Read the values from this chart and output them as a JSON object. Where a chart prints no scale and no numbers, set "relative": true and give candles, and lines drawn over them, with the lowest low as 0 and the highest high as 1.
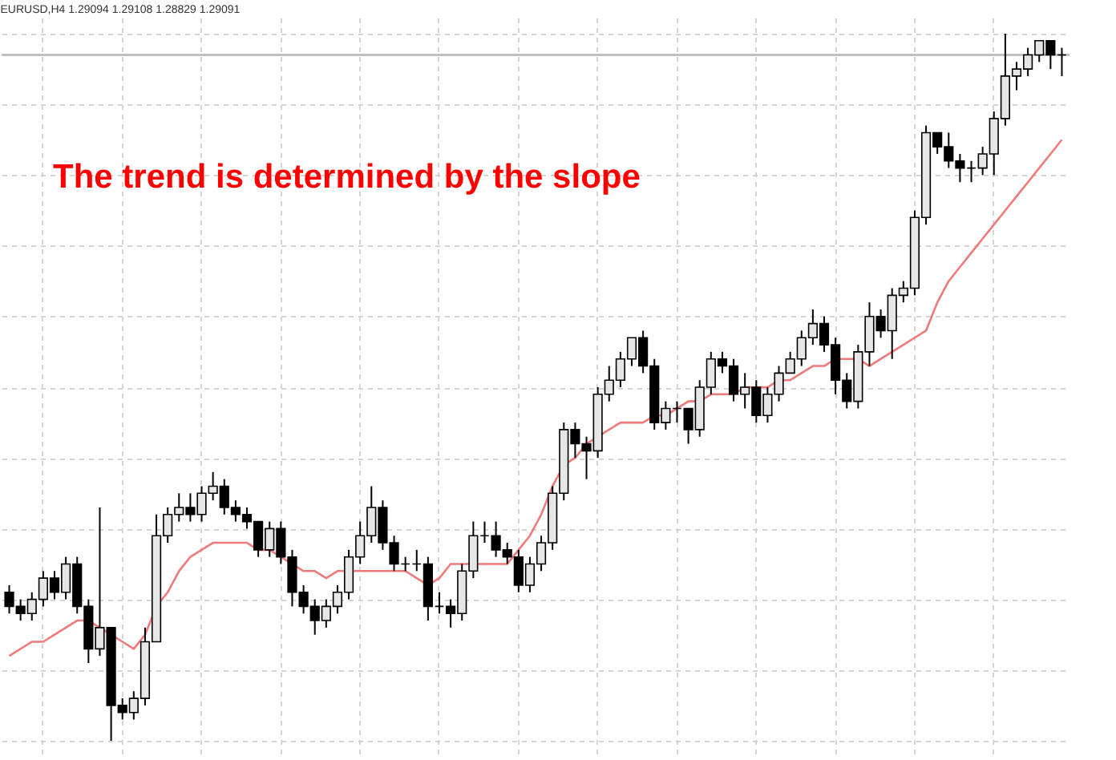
{
  "chart_data": {
    "type": "candlestick",
    "title": "EURUSD,H4 1.29094 1.29108 1.28829 1.29091",
    "relative": true,
    "grid": true,
    "tick_labels": false,
    "annotations": [
      "The trend is determined by the slope"
    ],
    "categories": [
      null,
      null,
      null,
      null,
      null,
      null,
      null,
      null,
      null,
      null,
      null,
      null,
      null,
      null,
      null,
      null,
      null,
      null,
      null,
      null,
      null,
      null,
      null,
      null,
      null,
      null,
      null,
      null,
      null,
      null,
      null,
      null,
      null,
      null,
      null,
      null,
      null,
      null,
      null,
      null,
      null,
      null,
      null,
      null,
      null,
      null,
      null,
      null,
      null,
      null,
      null,
      null,
      null,
      null,
      null,
      null,
      null,
      null,
      null,
      null,
      null,
      null,
      null,
      null,
      null,
      null,
      null,
      null,
      null,
      null,
      null,
      null,
      null,
      null,
      null,
      null,
      null,
      null,
      null,
      null,
      null,
      null,
      null,
      null,
      null,
      null,
      null,
      null,
      null,
      null,
      null,
      null,
      null,
      null
    ],
    "ohlc": [
      [
        0.21,
        0.22,
        0.18,
        0.19
      ],
      [
        0.19,
        0.2,
        0.17,
        0.18
      ],
      [
        0.18,
        0.21,
        0.17,
        0.2
      ],
      [
        0.2,
        0.24,
        0.19,
        0.23
      ],
      [
        0.23,
        0.24,
        0.2,
        0.21
      ],
      [
        0.21,
        0.26,
        0.2,
        0.25
      ],
      [
        0.25,
        0.26,
        0.18,
        0.19
      ],
      [
        0.19,
        0.2,
        0.11,
        0.13
      ],
      [
        0.13,
        0.33,
        0.12,
        0.16
      ],
      [
        0.16,
        0.16,
        0.0,
        0.05
      ],
      [
        0.05,
        0.06,
        0.03,
        0.04
      ],
      [
        0.04,
        0.07,
        0.03,
        0.06
      ],
      [
        0.06,
        0.16,
        0.05,
        0.14
      ],
      [
        0.14,
        0.32,
        0.14,
        0.29
      ],
      [
        0.29,
        0.33,
        0.28,
        0.32
      ],
      [
        0.32,
        0.35,
        0.31,
        0.33
      ],
      [
        0.33,
        0.35,
        0.31,
        0.32
      ],
      [
        0.32,
        0.36,
        0.31,
        0.35
      ],
      [
        0.35,
        0.38,
        0.34,
        0.36
      ],
      [
        0.36,
        0.37,
        0.32,
        0.33
      ],
      [
        0.33,
        0.34,
        0.31,
        0.32
      ],
      [
        0.32,
        0.33,
        0.3,
        0.31
      ],
      [
        0.31,
        0.31,
        0.26,
        0.27
      ],
      [
        0.27,
        0.31,
        0.26,
        0.3
      ],
      [
        0.3,
        0.31,
        0.25,
        0.26
      ],
      [
        0.26,
        0.27,
        0.19,
        0.21
      ],
      [
        0.21,
        0.22,
        0.18,
        0.19
      ],
      [
        0.19,
        0.2,
        0.15,
        0.17
      ],
      [
        0.17,
        0.2,
        0.16,
        0.19
      ],
      [
        0.19,
        0.22,
        0.18,
        0.21
      ],
      [
        0.21,
        0.27,
        0.2,
        0.26
      ],
      [
        0.26,
        0.31,
        0.25,
        0.29
      ],
      [
        0.29,
        0.36,
        0.28,
        0.33
      ],
      [
        0.33,
        0.34,
        0.27,
        0.28
      ],
      [
        0.28,
        0.29,
        0.24,
        0.25
      ],
      [
        0.25,
        0.26,
        0.24,
        0.25
      ],
      [
        0.25,
        0.27,
        0.24,
        0.25
      ],
      [
        0.25,
        0.26,
        0.17,
        0.19
      ],
      [
        0.19,
        0.21,
        0.18,
        0.19
      ],
      [
        0.19,
        0.2,
        0.16,
        0.18
      ],
      [
        0.18,
        0.25,
        0.17,
        0.24
      ],
      [
        0.24,
        0.31,
        0.23,
        0.29
      ],
      [
        0.29,
        0.31,
        0.28,
        0.29
      ],
      [
        0.29,
        0.31,
        0.26,
        0.27
      ],
      [
        0.27,
        0.28,
        0.25,
        0.26
      ],
      [
        0.26,
        0.27,
        0.21,
        0.22
      ],
      [
        0.22,
        0.26,
        0.21,
        0.25
      ],
      [
        0.25,
        0.29,
        0.24,
        0.28
      ],
      [
        0.28,
        0.36,
        0.27,
        0.35
      ],
      [
        0.35,
        0.45,
        0.34,
        0.44
      ],
      [
        0.44,
        0.45,
        0.4,
        0.42
      ],
      [
        0.42,
        0.43,
        0.37,
        0.41
      ],
      [
        0.41,
        0.5,
        0.4,
        0.49
      ],
      [
        0.49,
        0.53,
        0.48,
        0.51
      ],
      [
        0.51,
        0.55,
        0.5,
        0.54
      ],
      [
        0.54,
        0.57,
        0.53,
        0.57
      ],
      [
        0.57,
        0.58,
        0.52,
        0.53
      ],
      [
        0.53,
        0.54,
        0.44,
        0.45
      ],
      [
        0.45,
        0.48,
        0.44,
        0.47
      ],
      [
        0.47,
        0.48,
        0.45,
        0.47
      ],
      [
        0.47,
        0.47,
        0.42,
        0.44
      ],
      [
        0.44,
        0.51,
        0.43,
        0.5
      ],
      [
        0.5,
        0.55,
        0.49,
        0.54
      ],
      [
        0.54,
        0.55,
        0.52,
        0.53
      ],
      [
        0.53,
        0.54,
        0.48,
        0.49
      ],
      [
        0.49,
        0.52,
        0.47,
        0.5
      ],
      [
        0.5,
        0.51,
        0.45,
        0.46
      ],
      [
        0.46,
        0.5,
        0.45,
        0.49
      ],
      [
        0.49,
        0.53,
        0.48,
        0.52
      ],
      [
        0.52,
        0.55,
        0.52,
        0.54
      ],
      [
        0.54,
        0.58,
        0.53,
        0.57
      ],
      [
        0.57,
        0.61,
        0.56,
        0.59
      ],
      [
        0.59,
        0.6,
        0.55,
        0.56
      ],
      [
        0.56,
        0.57,
        0.49,
        0.51
      ],
      [
        0.51,
        0.52,
        0.47,
        0.48
      ],
      [
        0.48,
        0.56,
        0.47,
        0.55
      ],
      [
        0.55,
        0.62,
        0.53,
        0.6
      ],
      [
        0.6,
        0.61,
        0.57,
        0.58
      ],
      [
        0.58,
        0.64,
        0.54,
        0.63
      ],
      [
        0.63,
        0.65,
        0.62,
        0.64
      ],
      [
        0.64,
        0.75,
        0.63,
        0.74
      ],
      [
        0.74,
        0.87,
        0.73,
        0.86
      ],
      [
        0.86,
        0.86,
        0.83,
        0.84
      ],
      [
        0.84,
        0.86,
        0.81,
        0.82
      ],
      [
        0.82,
        0.83,
        0.79,
        0.81
      ],
      [
        0.81,
        0.82,
        0.79,
        0.81
      ],
      [
        0.81,
        0.84,
        0.8,
        0.83
      ],
      [
        0.83,
        0.89,
        0.8,
        0.88
      ],
      [
        0.88,
        1.0,
        0.87,
        0.94
      ],
      [
        0.94,
        0.96,
        0.92,
        0.95
      ],
      [
        0.95,
        0.98,
        0.94,
        0.97
      ],
      [
        0.97,
        0.99,
        0.96,
        0.99
      ],
      [
        0.99,
        0.99,
        0.95,
        0.97
      ],
      [
        0.97,
        0.98,
        0.94,
        0.97
      ]
    ],
    "series": [
      {
        "type": "line",
        "color": "#f07a7a",
        "values": [
          0.12,
          0.13,
          0.14,
          0.14,
          0.15,
          0.16,
          0.17,
          0.17,
          0.16,
          0.15,
          0.14,
          0.13,
          0.15,
          0.19,
          0.21,
          0.24,
          0.26,
          0.27,
          0.28,
          0.28,
          0.28,
          0.28,
          0.27,
          0.27,
          0.26,
          0.25,
          0.24,
          0.24,
          0.23,
          0.24,
          0.24,
          0.24,
          0.24,
          0.24,
          0.24,
          0.24,
          0.23,
          0.22,
          0.23,
          0.25,
          0.25,
          0.25,
          0.25,
          0.25,
          0.25,
          0.27,
          0.29,
          0.32,
          0.36,
          0.39,
          0.4,
          0.42,
          0.43,
          0.44,
          0.45,
          0.45,
          0.45,
          0.46,
          0.46,
          0.47,
          0.48,
          0.48,
          0.49,
          0.49,
          0.49,
          0.5,
          0.5,
          0.5,
          0.51,
          0.51,
          0.52,
          0.53,
          0.53,
          0.54,
          0.54,
          0.54,
          0.53,
          0.54,
          0.55,
          0.56,
          0.57,
          0.58,
          0.62,
          0.65,
          0.67,
          0.69,
          0.71,
          0.73,
          0.75,
          0.77,
          0.79,
          0.81,
          0.83,
          0.85
        ]
      }
    ],
    "ref_lines": [
      {
        "axis": "y",
        "value": 0.97,
        "color": "#c0c0c0"
      }
    ]
  }
}
